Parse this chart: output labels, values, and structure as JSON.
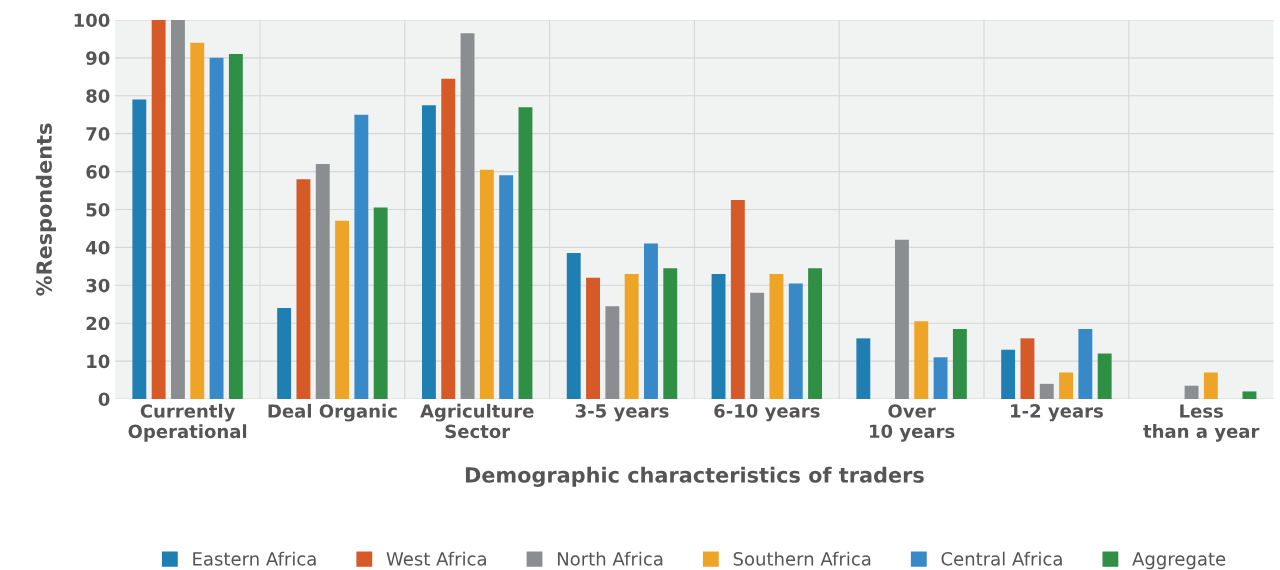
{
  "chart_data": {
    "type": "bar",
    "xlabel": "Demographic characteristics of traders",
    "ylabel": "%Respondents",
    "categories": [
      "Currently Operational",
      "Deal Organic",
      "Agriculture Sector",
      "3-5 years",
      "6-10 years",
      "Over 10 years",
      "1-2 years",
      "Less than a year"
    ],
    "series": [
      {
        "name": "Eastern Africa",
        "color": "#1f7fb2",
        "values": [
          79,
          24,
          77.5,
          38.5,
          33,
          16,
          13,
          null
        ]
      },
      {
        "name": "West Africa",
        "color": "#d55a28",
        "values": [
          100,
          58,
          84.5,
          32,
          52.5,
          null,
          16,
          null
        ]
      },
      {
        "name": "North Africa",
        "color": "#8a8e91",
        "values": [
          100,
          62,
          96.5,
          24.5,
          28,
          42,
          4,
          3.5
        ]
      },
      {
        "name": "Southern Africa",
        "color": "#eea426",
        "values": [
          94,
          47,
          60.5,
          33,
          33,
          20.5,
          7,
          7
        ]
      },
      {
        "name": "Central Africa",
        "color": "#3789c7",
        "values": [
          90,
          75,
          59,
          41,
          30.5,
          11,
          18.5,
          null
        ]
      },
      {
        "name": "Aggregate",
        "color": "#2e8f45",
        "values": [
          91,
          50.5,
          77,
          34.5,
          34.5,
          18.5,
          12,
          2
        ]
      }
    ],
    "ylim": [
      0,
      100
    ],
    "yticks": [
      0,
      10,
      20,
      30,
      40,
      50,
      60,
      70,
      80,
      90,
      100
    ],
    "grid": true,
    "legend": "bottom"
  }
}
